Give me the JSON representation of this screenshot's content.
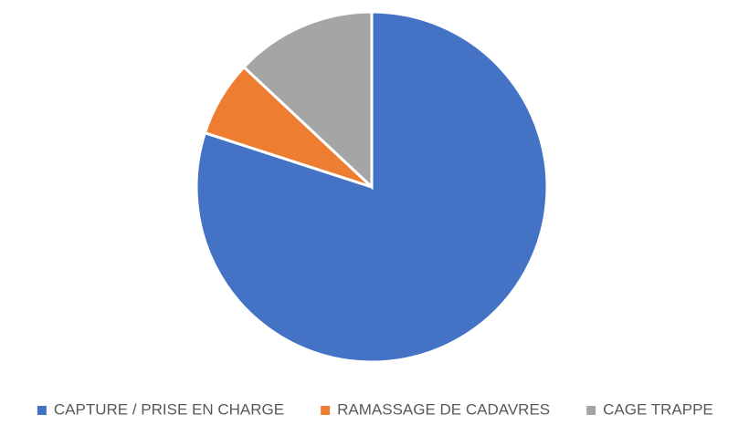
{
  "chart_data": {
    "type": "pie",
    "categories": [
      "CAPTURE / PRISE EN CHARGE",
      "RAMASSAGE DE CADAVRES",
      "CAGE TRAPPE"
    ],
    "values": [
      80,
      7,
      13
    ],
    "colors": [
      "#4472c4",
      "#ed7d31",
      "#a5a5a5"
    ],
    "legend": "bottom"
  }
}
